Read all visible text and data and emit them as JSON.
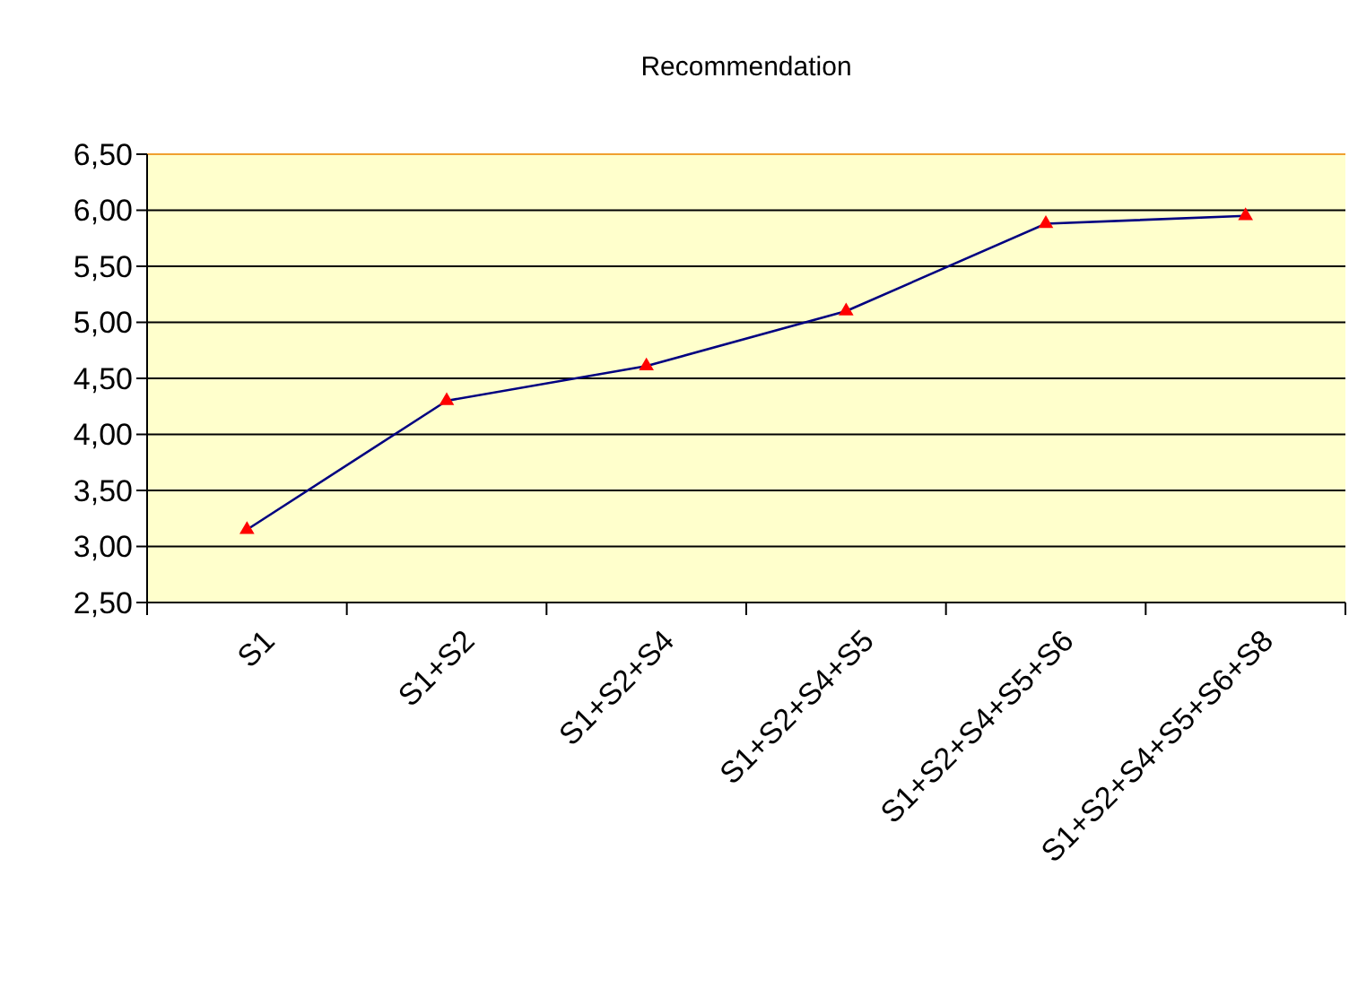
{
  "chart_data": {
    "type": "line",
    "title": "Recommendation",
    "categories": [
      "S1",
      "S1+S2",
      "S1+S2+S4",
      "S1+S2+S4+S5",
      "S1+S2+S4+S5+S6",
      "S1+S2+S4+S5+S6+S8"
    ],
    "series": [
      {
        "color": "#000080",
        "values": [
          3.15,
          4.3,
          4.61,
          5.1,
          5.88,
          5.95
        ]
      }
    ],
    "ylim": [
      2.5,
      6.5
    ],
    "yticks": [
      {
        "value": 2.5,
        "label": "2,50"
      },
      {
        "value": 3,
        "label": "3,00"
      },
      {
        "value": 3.5,
        "label": "3,50"
      },
      {
        "value": 4,
        "label": "4,00"
      },
      {
        "value": 4.5,
        "label": "4,50"
      },
      {
        "value": 5,
        "label": "5,00"
      },
      {
        "value": 5.5,
        "label": "5,50"
      },
      {
        "value": 6,
        "label": "6,00"
      },
      {
        "value": 6.5,
        "label": "6,50"
      }
    ],
    "grid": "y",
    "marker": "triangle"
  }
}
